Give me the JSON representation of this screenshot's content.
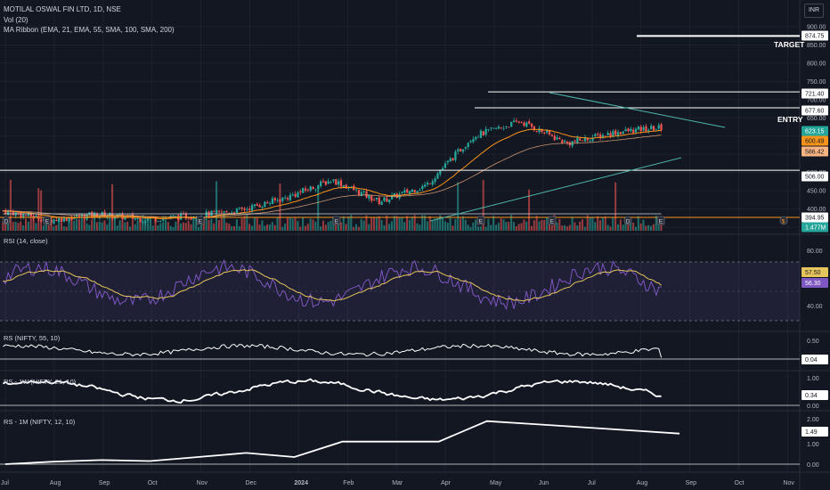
{
  "header": {
    "symbol_line": "MOTILAL OSWAL FIN LTD, 1D, NSE",
    "volume_label": "Vol (20)",
    "ribbon_label": "MA Ribbon (EMA, 21, EMA, 55, SMA, 100, SMA, 200)",
    "currency": "INR"
  },
  "price_axis": {
    "ticks": [
      "900.00",
      "850.00",
      "800.00",
      "750.00",
      "700.00",
      "650.00",
      "600.00",
      "550.00",
      "500.00",
      "450.00",
      "400.00",
      "350.00"
    ],
    "labels": [
      {
        "text": "874.75",
        "kind": "level"
      },
      {
        "text": "721.40",
        "kind": "level"
      },
      {
        "text": "677.60",
        "kind": "level"
      },
      {
        "text": "623.15",
        "kind": "last",
        "color": "#26a69a"
      },
      {
        "text": "600.49",
        "kind": "ma",
        "color": "#f7931a"
      },
      {
        "text": "586.42",
        "kind": "ma",
        "color": "#f9b482"
      },
      {
        "text": "506.00",
        "kind": "level"
      },
      {
        "text": "394.95",
        "kind": "level"
      },
      {
        "text": "1.477M",
        "kind": "volume",
        "color": "#26a69a"
      }
    ]
  },
  "annotations": {
    "target": "TARGET",
    "entry": "ENTRY"
  },
  "rsi": {
    "label": "RSI (14, close)",
    "ticks": [
      "80.00",
      "40.00"
    ],
    "values": [
      "57.50",
      "56.30"
    ]
  },
  "rs55": {
    "label": "RS (NIFTY, 55, 10)",
    "ticks": [
      "0.50",
      "0.00"
    ],
    "value": "0.04"
  },
  "rs1w": {
    "label": "RS - 1W (NIFTY, 21, 10)",
    "ticks": [
      "1.00",
      "0.00"
    ],
    "value": "0.34"
  },
  "rs1m": {
    "label": "RS - 1M (NIFTY, 12, 10)",
    "ticks": [
      "2.00",
      "1.00",
      "0.00"
    ],
    "value": "1.49"
  },
  "time_axis": [
    "Jul",
    "Aug",
    "Sep",
    "Oct",
    "Nov",
    "Dec",
    "2024",
    "Feb",
    "Mar",
    "Apr",
    "May",
    "Jun",
    "Jul",
    "Aug",
    "Sep",
    "Oct",
    "Nov"
  ],
  "event_markers": [
    "D",
    "E",
    "E",
    "E",
    "E",
    "E",
    "D",
    "E",
    "$"
  ],
  "colors": {
    "up": "#26a69a",
    "down": "#ef5350",
    "background": "#131722",
    "ema21": "#f7931a",
    "ema55": "#f9b482",
    "rsi": "#7e57c2",
    "rsi_ma": "#e6c65c",
    "level": "#ffffff"
  },
  "chart_data": {
    "type": "candlestick",
    "price_ylim": [
      350,
      900
    ],
    "horizontal_levels": [
      874.75,
      721.4,
      677.6,
      506.0,
      394.95
    ],
    "trendlines": [
      {
        "name": "resistance",
        "from": [
          "2024-06-07",
          721.4
        ],
        "to": [
          "2024-09-25",
          655
        ]
      },
      {
        "name": "support",
        "from": [
          "2024-04-01",
          395
        ],
        "to": [
          "2024-09-01",
          565
        ]
      }
    ],
    "close_series": {
      "dates": [
        "2023-07-01",
        "2023-08-01",
        "2023-09-01",
        "2023-10-01",
        "2023-11-01",
        "2023-12-01",
        "2024-01-01",
        "2024-02-01",
        "2024-03-01",
        "2024-04-01",
        "2024-05-01",
        "2024-06-01",
        "2024-07-01",
        "2024-08-01",
        "2024-08-12"
      ],
      "values": [
        395,
        370,
        385,
        372,
        380,
        395,
        430,
        480,
        420,
        465,
        600,
        640,
        580,
        610,
        623.15
      ]
    },
    "rsi_range": [
      20,
      100
    ],
    "rsi_last": 56.3,
    "rsi_ma_last": 57.5,
    "rs55_last": 0.04,
    "rs1w_last": 0.34,
    "rs1m_last": 1.49
  }
}
